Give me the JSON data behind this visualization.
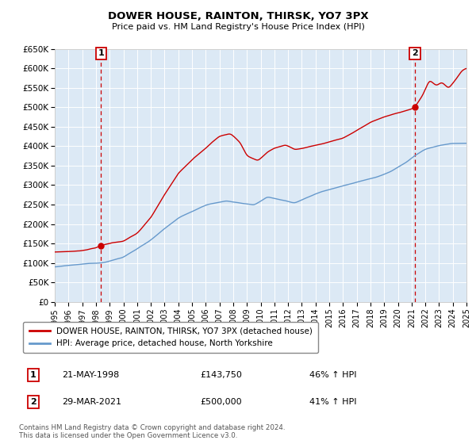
{
  "title": "DOWER HOUSE, RAINTON, THIRSK, YO7 3PX",
  "subtitle": "Price paid vs. HM Land Registry's House Price Index (HPI)",
  "plot_bg_color": "#dce9f5",
  "ylabel_ticks": [
    "£0",
    "£50K",
    "£100K",
    "£150K",
    "£200K",
    "£250K",
    "£300K",
    "£350K",
    "£400K",
    "£450K",
    "£500K",
    "£550K",
    "£600K",
    "£650K"
  ],
  "ytick_values": [
    0,
    50000,
    100000,
    150000,
    200000,
    250000,
    300000,
    350000,
    400000,
    450000,
    500000,
    550000,
    600000,
    650000
  ],
  "sale1_year": 1998.38,
  "sale1_price": 143750,
  "sale2_year": 2021.24,
  "sale2_price": 500000,
  "red_line_color": "#cc0000",
  "blue_line_color": "#6699cc",
  "sale_dot_color": "#cc0000",
  "legend_entry1": "DOWER HOUSE, RAINTON, THIRSK, YO7 3PX (detached house)",
  "legend_entry2": "HPI: Average price, detached house, North Yorkshire",
  "annotation1_date": "21-MAY-1998",
  "annotation1_price": "£143,750",
  "annotation1_hpi": "46% ↑ HPI",
  "annotation2_date": "29-MAR-2021",
  "annotation2_price": "£500,000",
  "annotation2_hpi": "41% ↑ HPI",
  "footer": "Contains HM Land Registry data © Crown copyright and database right 2024.\nThis data is licensed under the Open Government Licence v3.0."
}
